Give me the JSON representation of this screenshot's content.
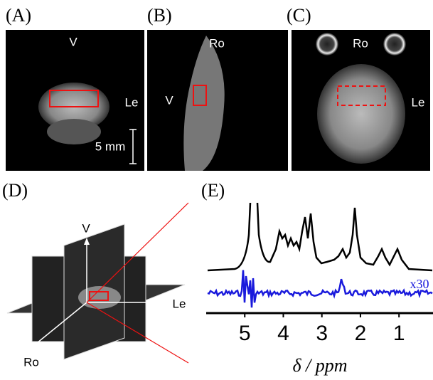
{
  "panels": [
    {
      "label": "(A)",
      "annotations": [
        "V",
        "Le",
        "5 mm"
      ]
    },
    {
      "label": "(B)",
      "annotations": [
        "Ro",
        "V"
      ]
    },
    {
      "label": "(C)",
      "annotations": [
        "Ro",
        "Le"
      ]
    },
    {
      "label": "(D)",
      "annotations": [
        "V",
        "Le",
        "Ro"
      ]
    }
  ],
  "spectrum": {
    "label": "(E)",
    "scale_label": "x30",
    "x_label": "δ / ppm",
    "xlim": [
      6,
      0.1
    ],
    "xticks": [
      5,
      4,
      3,
      2,
      1
    ]
  }
}
